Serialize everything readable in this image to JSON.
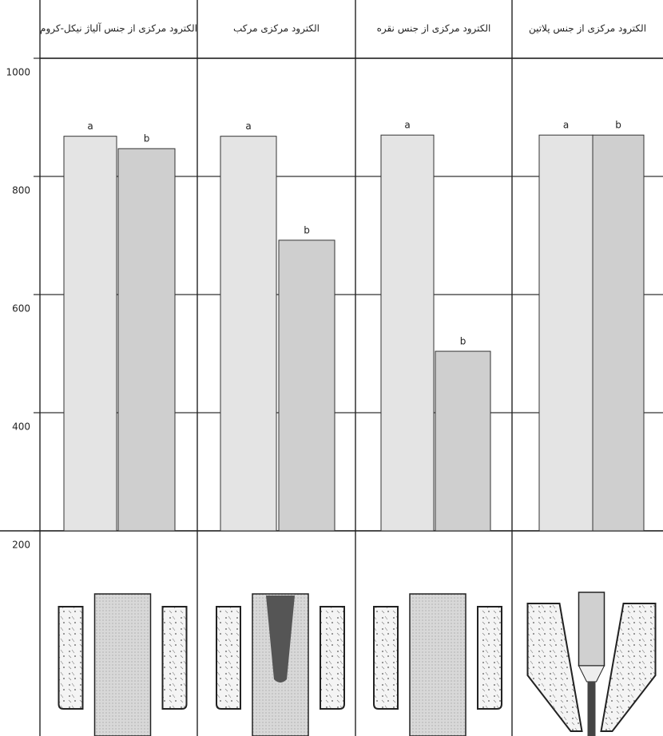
{
  "chart_data": {
    "type": "bar",
    "categories": [
      "الکترود مرکزی از جنس آلیاژ نیکل-کروم",
      "الکترود مرکزی مرکب",
      "الکترود مرکزی از جنس نقره",
      "الکترود مرکزی از جنس پلاتین"
    ],
    "series": [
      {
        "name": "a",
        "color": "#e4e4e4",
        "values": [
          868,
          868,
          870,
          870
        ]
      },
      {
        "name": "b",
        "color": "#cfcfcf",
        "values": [
          847,
          692,
          504,
          870
        ]
      }
    ],
    "ylim": [
      200,
      1000
    ],
    "yticks": [
      200,
      400,
      600,
      800,
      1000
    ],
    "grid": true
  }
}
